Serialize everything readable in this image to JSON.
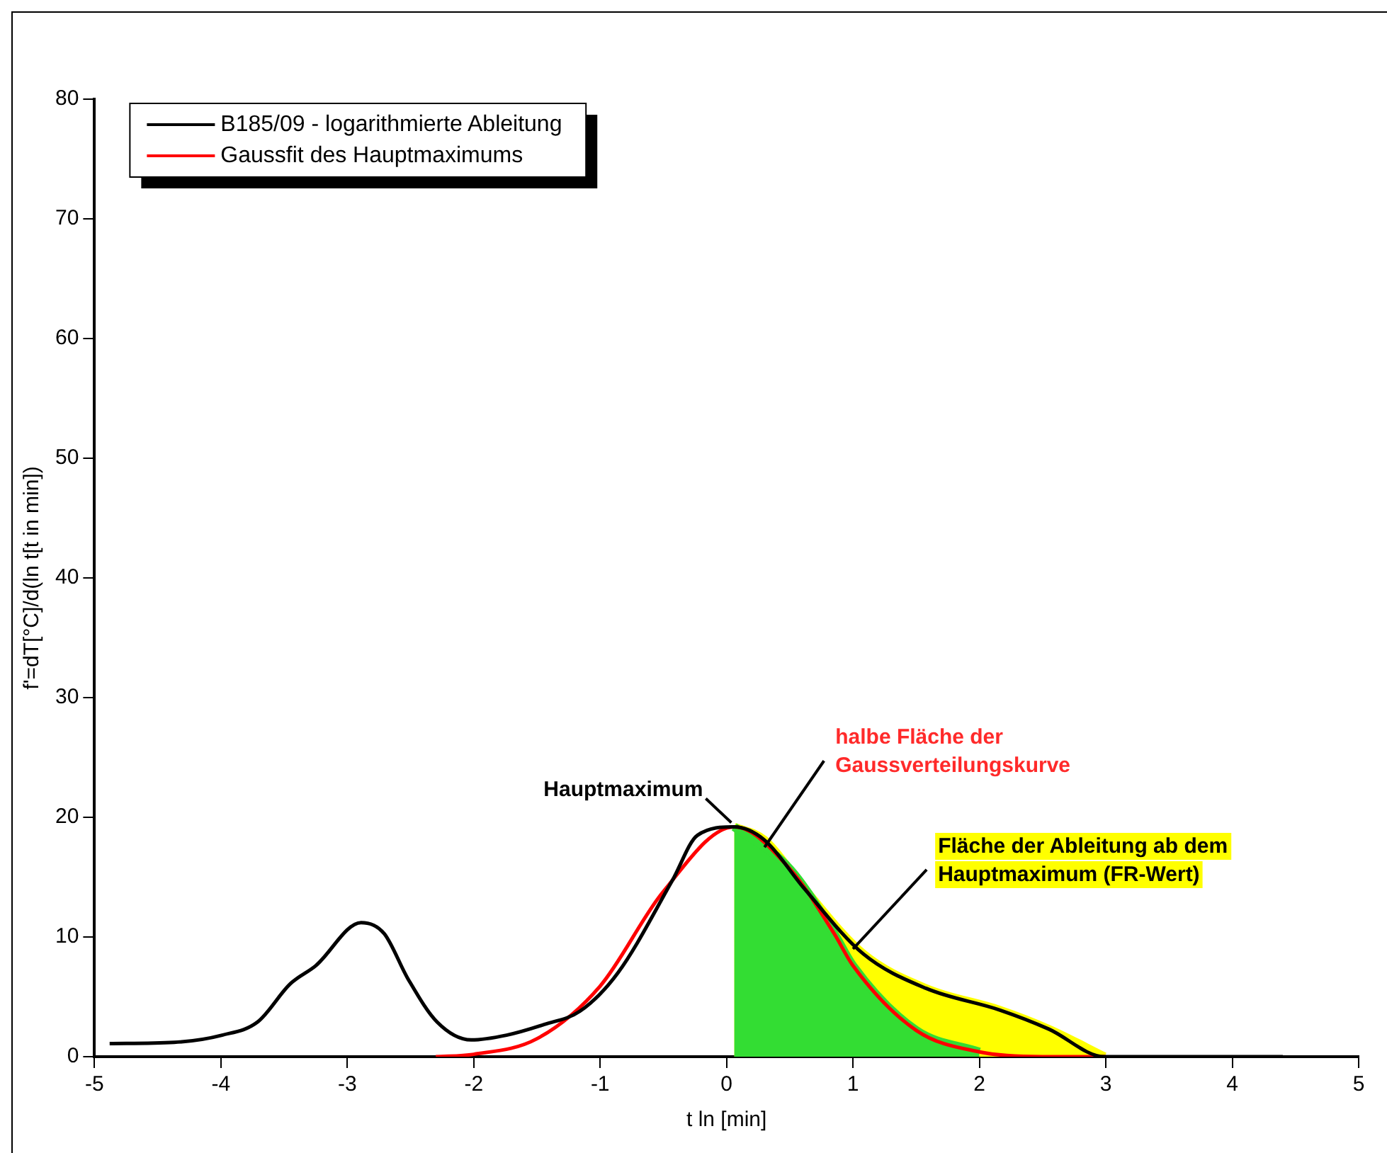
{
  "chart_data": {
    "type": "line",
    "xlabel": "t ln [min]",
    "ylabel": "f'=dT[°C]/d(ln t[t in min])",
    "xlim": [
      -5,
      5
    ],
    "xticks": [
      -5,
      -4,
      -3,
      -2,
      -1,
      0,
      1,
      2,
      3,
      4,
      5
    ],
    "ylim": [
      0,
      80
    ],
    "yticks": [
      0,
      10,
      20,
      30,
      40,
      50,
      60,
      70,
      80
    ],
    "grid": false,
    "legend": "top left",
    "marker": "none",
    "line_style": "solid",
    "series": [
      {
        "name": "B185/09 - logarithmierte Ableitung",
        "color": "#000000",
        "x": [
          -4.88,
          -4.37,
          -3.99,
          -3.71,
          -3.45,
          -3.25,
          -2.89,
          -2.71,
          -2.52,
          -2.29,
          -2.02,
          -1.74,
          -1.44,
          -1.16,
          -0.86,
          -0.43,
          -0.23,
          0.06,
          0.3,
          0.61,
          1.08,
          1.58,
          2.16,
          2.55,
          2.99,
          3.5,
          4.4
        ],
        "values": [
          1.1,
          1.2,
          1.8,
          2.9,
          6.1,
          7.6,
          11.2,
          10.3,
          6.5,
          2.9,
          1.4,
          1.8,
          2.7,
          3.8,
          7.0,
          14.7,
          18.5,
          19.2,
          18.1,
          14.1,
          8.6,
          5.7,
          3.9,
          2.3,
          0,
          0,
          0
        ]
      },
      {
        "name": "Gaussfit des Hauptmaximums",
        "color": "#ff0000",
        "x": [
          -2.3,
          -2.0,
          -1.5,
          -1.0,
          -0.5,
          0.06,
          0.5,
          0.85,
          1.0,
          1.5,
          2.0,
          2.5,
          3.0
        ],
        "values": [
          0,
          0.2,
          1.5,
          5.9,
          13.8,
          19.2,
          15.7,
          10.3,
          7.6,
          2.2,
          0.4,
          0,
          0
        ]
      },
      {
        "type": "area",
        "color": "#ffff00",
        "x": [
          0.06,
          0.3,
          0.61,
          1.08,
          1.58,
          2.16,
          2.55,
          2.99
        ],
        "values": [
          19.2,
          18.1,
          14.1,
          8.6,
          5.7,
          3.9,
          2.3,
          0
        ]
      },
      {
        "type": "area",
        "color": "#33dd33",
        "x": [
          0.06,
          0.5,
          0.85,
          1.0,
          1.5,
          2.0
        ],
        "values": [
          19.2,
          15.7,
          10.3,
          7.6,
          2.2,
          0.4
        ]
      }
    ],
    "annotations": [
      {
        "text": "Hauptmaximum",
        "x": 0.06,
        "y": 19.2
      },
      {
        "text": "halbe Fläche der Gaussverteilungskurve",
        "x": 0.3,
        "y": 17.5
      },
      {
        "text": "Fläche der Ableitung ab dem Hauptmaximum (FR-Wert)",
        "x": 1.0,
        "y": 9.0
      }
    ]
  }
}
